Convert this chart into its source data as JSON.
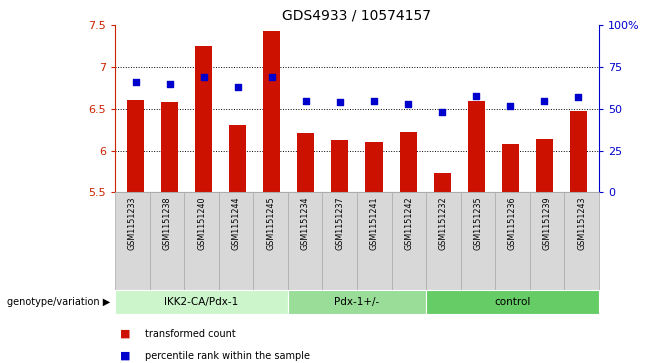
{
  "title": "GDS4933 / 10574157",
  "samples": [
    "GSM1151233",
    "GSM1151238",
    "GSM1151240",
    "GSM1151244",
    "GSM1151245",
    "GSM1151234",
    "GSM1151237",
    "GSM1151241",
    "GSM1151242",
    "GSM1151232",
    "GSM1151235",
    "GSM1151236",
    "GSM1151239",
    "GSM1151243"
  ],
  "red_values": [
    6.61,
    6.58,
    7.25,
    6.31,
    7.43,
    6.21,
    6.13,
    6.1,
    6.22,
    5.73,
    6.6,
    6.08,
    6.14,
    6.47
  ],
  "blue_values": [
    66,
    65,
    69,
    63,
    69,
    55,
    54,
    55,
    53,
    48,
    58,
    52,
    55,
    57
  ],
  "groups": [
    {
      "label": "IKK2-CA/Pdx-1",
      "start": 0,
      "end": 5,
      "color": "#ccf5cc"
    },
    {
      "label": "Pdx-1+/-",
      "start": 5,
      "end": 9,
      "color": "#99dd99"
    },
    {
      "label": "control",
      "start": 9,
      "end": 14,
      "color": "#66cc66"
    }
  ],
  "ylim_left": [
    5.5,
    7.5
  ],
  "ylim_right": [
    0,
    100
  ],
  "bar_color": "#cc1100",
  "dot_color": "#0000cc",
  "background_color": "#ffffff",
  "tick_color_left": "#cc2200",
  "tick_color_right": "#0000cc",
  "legend_items": [
    {
      "label": "transformed count",
      "color": "#cc1100"
    },
    {
      "label": "percentile rank within the sample",
      "color": "#0000cc"
    }
  ],
  "genotype_label": "genotype/variation",
  "ylabel_left_ticks": [
    5.5,
    6.0,
    6.5,
    7.0,
    7.5
  ],
  "ylabel_right_ticks": [
    0,
    25,
    50,
    75,
    100
  ],
  "grid_lines": [
    6.0,
    6.5,
    7.0
  ],
  "sample_box_color": "#d8d8d8",
  "sample_box_edge": "#aaaaaa"
}
